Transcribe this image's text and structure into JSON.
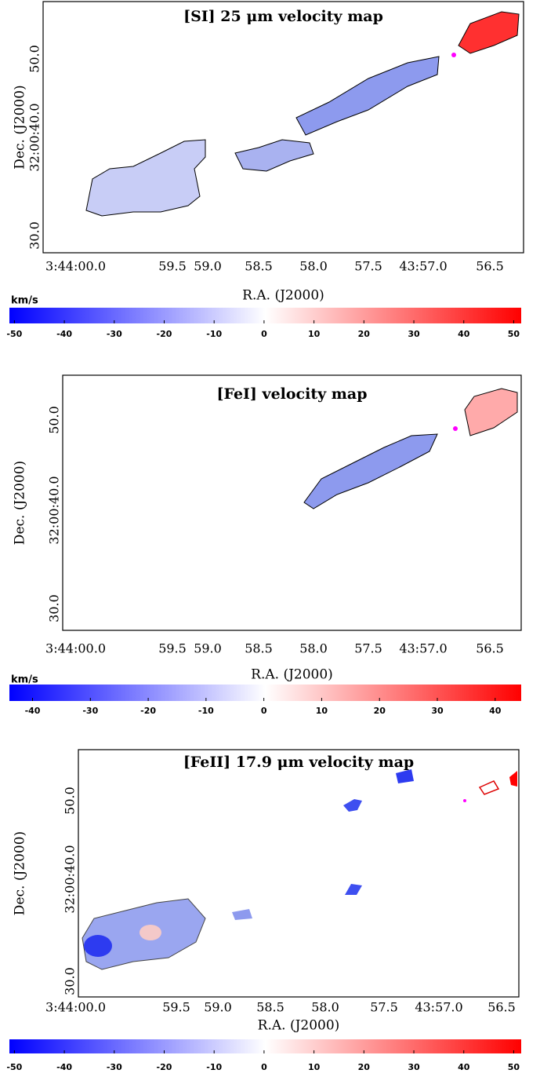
{
  "panels": [
    {
      "title": "[SI] 25 μm velocity map",
      "xlabel": "R.A. (J2000)",
      "ylabel": "Dec. (J2000)",
      "xticks": [
        "3:44:00.0",
        "59.5",
        "59.0",
        "58.5",
        "58.0",
        "57.5",
        "43:57.0",
        "56.5"
      ],
      "yticks": [
        "30.0",
        "32:00:40.0",
        "50.0"
      ],
      "colorbar": {
        "unit": "km/s",
        "lim": [
          -51,
          51.5
        ],
        "ticks": [
          -50,
          -40,
          -30,
          -20,
          -10,
          0,
          10,
          20,
          30,
          40,
          50
        ]
      }
    },
    {
      "title": "[FeI] velocity map",
      "xlabel": "R.A. (J2000)",
      "ylabel": "Dec. (J2000)",
      "xticks": [
        "3:44:00.0",
        "59.5",
        "59.0",
        "58.5",
        "58.0",
        "57.5",
        "43:57.0",
        "56.5"
      ],
      "yticks": [
        "30.0",
        "32:00:40.0",
        "50.0"
      ],
      "colorbar": {
        "unit": "km/s",
        "lim": [
          -44,
          44.5
        ],
        "ticks": [
          -40,
          -30,
          -20,
          -10,
          0,
          10,
          20,
          30,
          40
        ]
      }
    },
    {
      "title": "[FeII] 17.9 μm velocity map",
      "xlabel": "R.A. (J2000)",
      "ylabel": "Dec. (J2000)",
      "xticks": [
        "3:44:00.0",
        "59.5",
        "59.0",
        "58.5",
        "58.0",
        "57.5",
        "43:57.0",
        "56.5"
      ],
      "yticks": [
        "30.0",
        "32:00:40.0",
        "50.0"
      ],
      "colorbar": {
        "unit": "km/s",
        "lim": [
          -51,
          51.5
        ],
        "ticks": [
          -50,
          -40,
          -30,
          -20,
          -10,
          0,
          10,
          20,
          30,
          40,
          50
        ]
      }
    }
  ]
}
